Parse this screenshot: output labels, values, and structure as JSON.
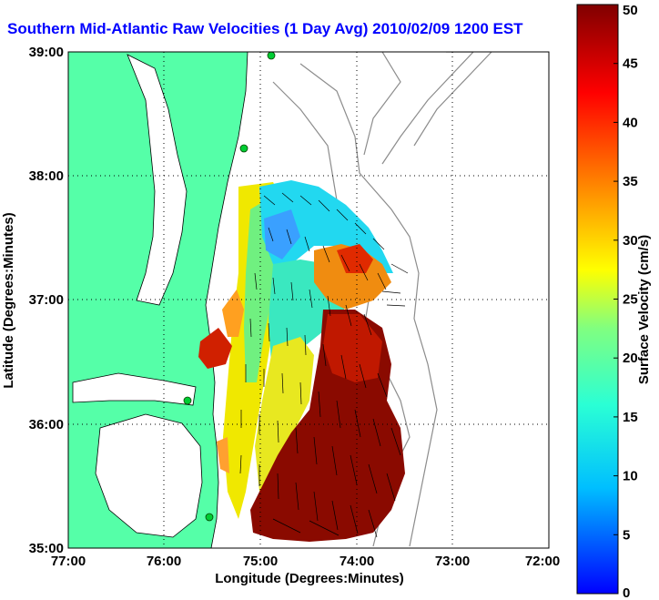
{
  "title": "Southern Mid-Atlantic Raw Velocities (1 Day Avg) 2010/02/09 1200 EST",
  "xlabel": "Longitude (Degrees:Minutes)",
  "ylabel": "Latitude (Degrees:Minutes)",
  "colorbar": {
    "label": "Surface Velocity (cm/s)",
    "min": 0,
    "max": 50,
    "ticks": [
      "0",
      "5",
      "10",
      "15",
      "20",
      "25",
      "30",
      "35",
      "40",
      "45",
      "50"
    ]
  },
  "x_ticks": [
    "77:00",
    "76:00",
    "75:00",
    "74:00",
    "73:00",
    "72:00"
  ],
  "y_ticks": [
    "39:00",
    "38:00",
    "37:00",
    "36:00",
    "35:00"
  ],
  "colors": {
    "title": "#0000ff",
    "land": "#55ffa8",
    "coast": "#000000",
    "bathy": "#8c8c8c",
    "station": "#00cc33"
  }
}
